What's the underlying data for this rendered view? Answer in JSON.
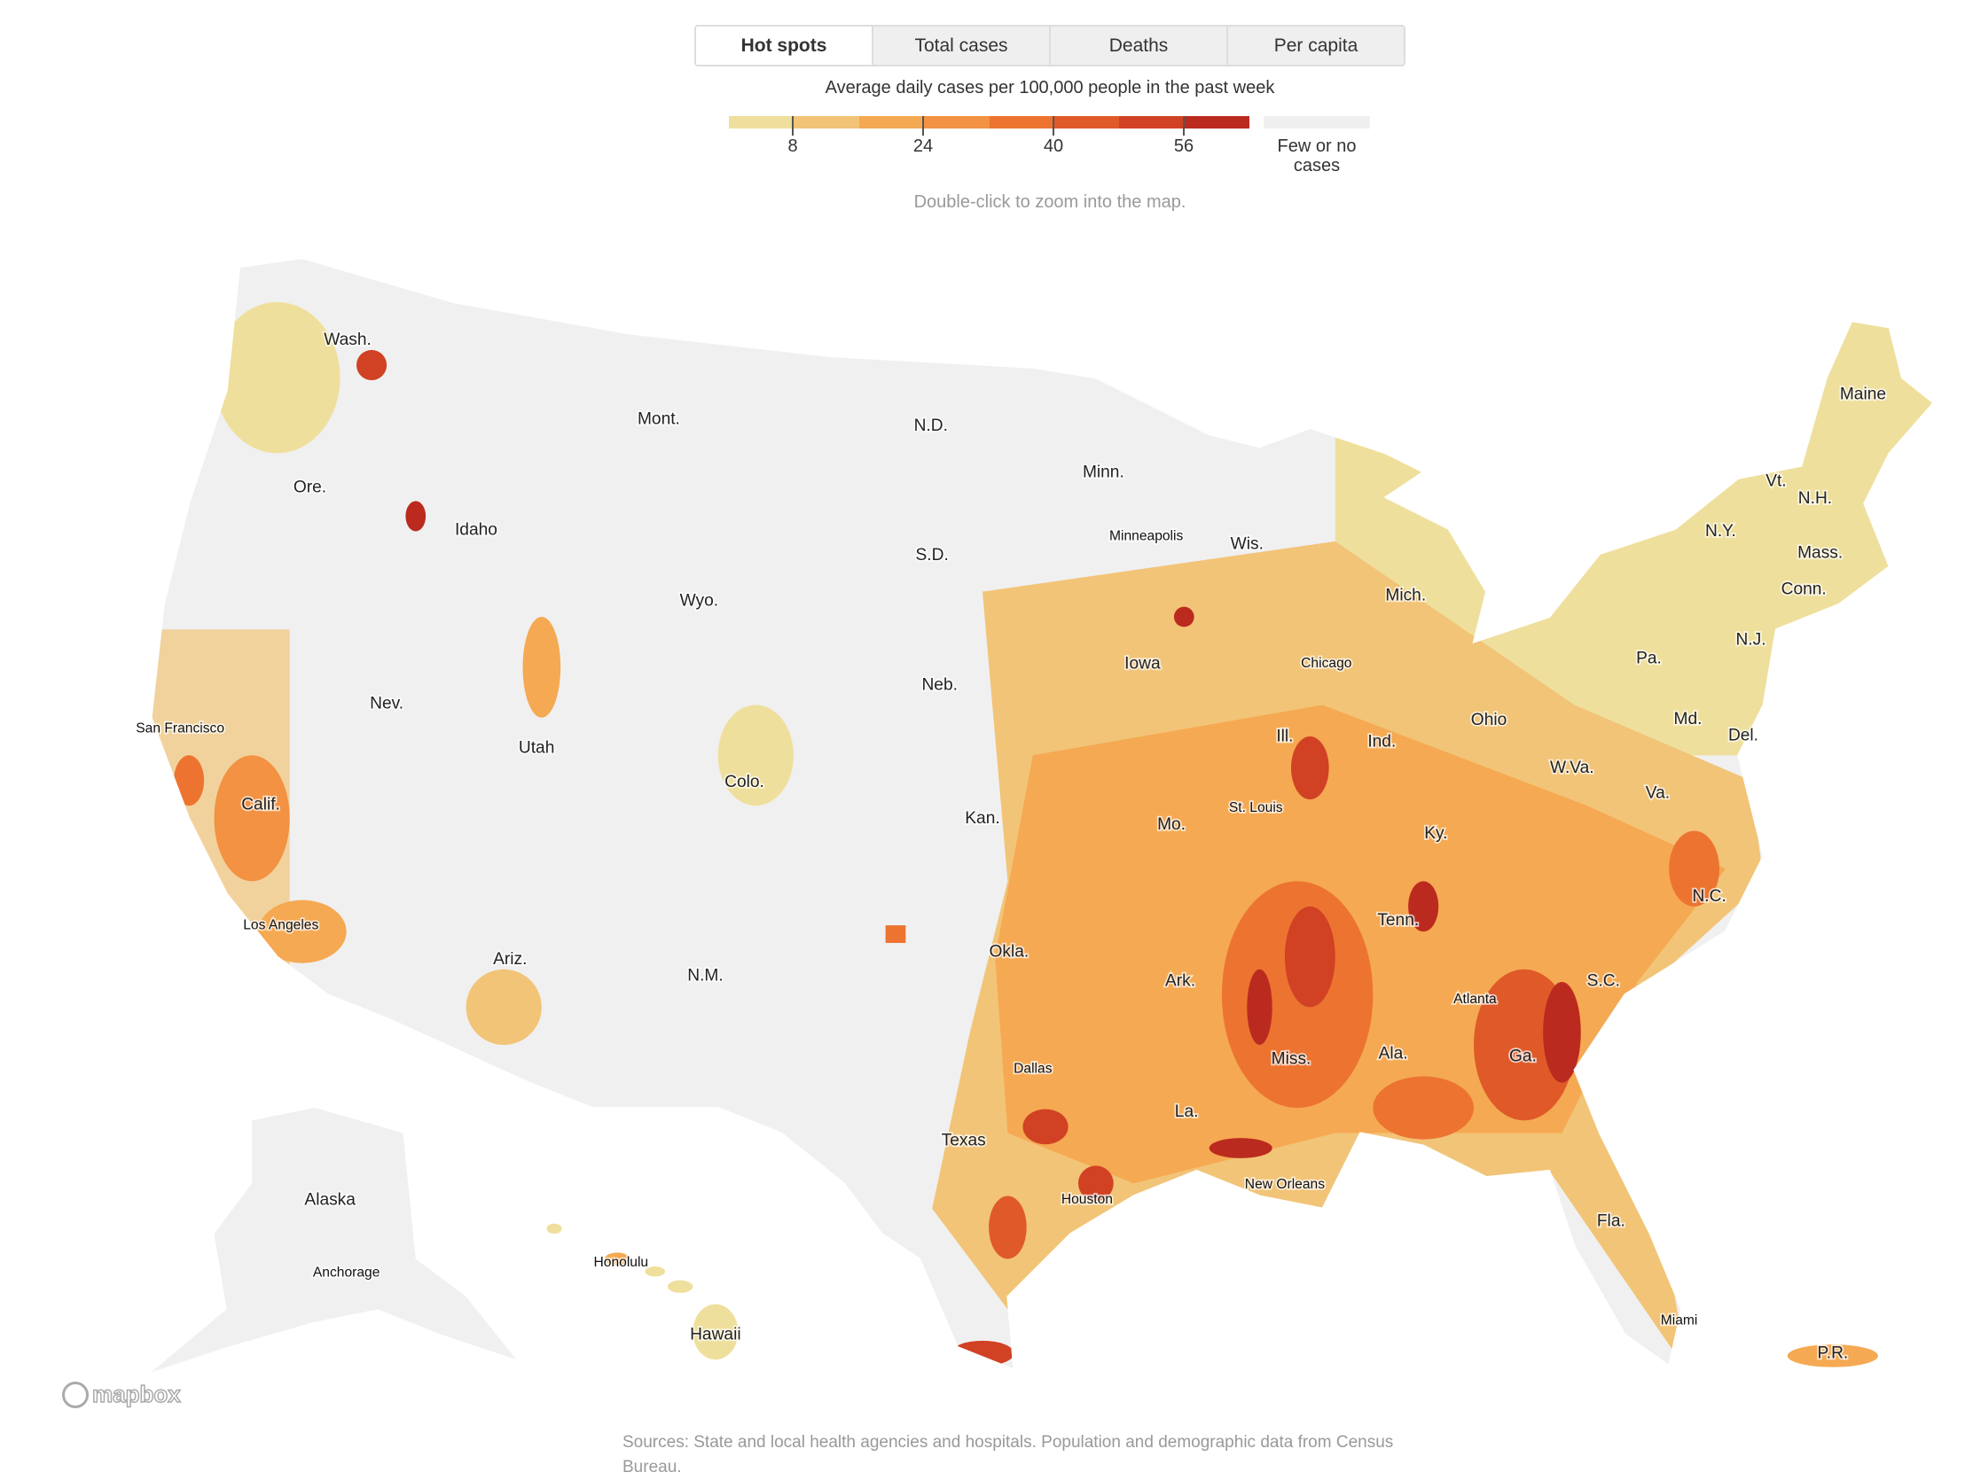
{
  "tabs": [
    {
      "label": "Hot spots",
      "active": true
    },
    {
      "label": "Total cases",
      "active": false
    },
    {
      "label": "Deaths",
      "active": false
    },
    {
      "label": "Per capita",
      "active": false
    }
  ],
  "legend": {
    "title": "Average daily cases per 100,000 people in the past week",
    "colors": [
      "#efdf9c",
      "#f2c477",
      "#f5a952",
      "#f29242",
      "#ec7430",
      "#df5a28",
      "#d14124",
      "#bb2a1f"
    ],
    "ticks": [
      "8",
      "24",
      "40",
      "56"
    ],
    "none_color": "#f0f0f0",
    "none_label": "Few or no cases"
  },
  "hint": "Double-click to zoom into the map.",
  "map": {
    "state_labels": [
      "Wash.",
      "Mont.",
      "N.D.",
      "Minn.",
      "Ore.",
      "Idaho",
      "S.D.",
      "Wis.",
      "Mich.",
      "Wyo.",
      "Iowa",
      "Neb.",
      "Nev.",
      "Utah",
      "Ill.",
      "Ind.",
      "Ohio",
      "Pa.",
      "N.J.",
      "Md.",
      "Del.",
      "Colo.",
      "Calif.",
      "Kan.",
      "Mo.",
      "W.Va.",
      "Va.",
      "Ky.",
      "N.C.",
      "Tenn.",
      "Okla.",
      "Ariz.",
      "N.M.",
      "Ark.",
      "S.C.",
      "Miss.",
      "Ala.",
      "Ga.",
      "La.",
      "Texas",
      "Fla.",
      "Alaska",
      "Hawaii",
      "P.R.",
      "Maine",
      "Vt.",
      "N.H.",
      "N.Y.",
      "Mass.",
      "Conn."
    ],
    "city_labels": [
      "Minneapolis",
      "Chicago",
      "San Francisco",
      "St. Louis",
      "Los Angeles",
      "Atlanta",
      "Dallas",
      "New Orleans",
      "Houston",
      "Honolulu",
      "Anchorage",
      "Miami"
    ],
    "attribution": "mapbox"
  },
  "sources": "Sources: State and local health agencies and hospitals. Population and demographic data from Census Bureau."
}
